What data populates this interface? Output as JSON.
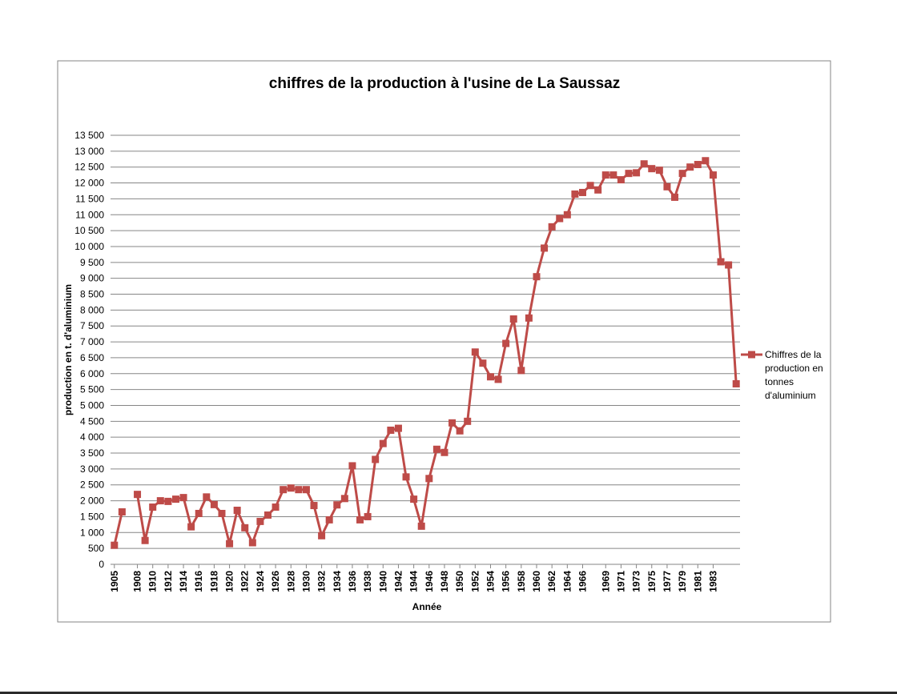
{
  "chart_data": {
    "type": "line",
    "title": "chiffres de la production à l'usine de La Saussaz",
    "xlabel": "Année",
    "ylabel": "production en t. d'aluminium",
    "ylim": [
      0,
      13500
    ],
    "ystep": 500,
    "grid": true,
    "legend_position": "right",
    "x_tick_labels": [
      "1905",
      "1908",
      "1910",
      "1912",
      "1914",
      "1916",
      "1918",
      "1920",
      "1922",
      "1924",
      "1926",
      "1928",
      "1930",
      "1932",
      "1934",
      "1936",
      "1938",
      "1940",
      "1942",
      "1944",
      "1946",
      "1948",
      "1950",
      "1952",
      "1954",
      "1956",
      "1958",
      "1960",
      "1962",
      "1964",
      "1966",
      "1969",
      "1971",
      "1973",
      "1975",
      "1977",
      "1979",
      "1981",
      "1983"
    ],
    "y_tick_labels": [
      "0",
      "500",
      "1 000",
      "1 500",
      "2 000",
      "2 500",
      "3 000",
      "3 500",
      "4 000",
      "4 500",
      "5 000",
      "5 500",
      "6 000",
      "6 500",
      "7 000",
      "7 500",
      "8 000",
      "8 500",
      "9 000",
      "9 500",
      "10 000",
      "10 500",
      "11 000",
      "11 500",
      "12 000",
      "12 500",
      "13 000",
      "13 500"
    ],
    "series": [
      {
        "name": "Chiffres de la production en tonnes d'aluminium",
        "color": "#be4b48",
        "values": [
          600,
          1650,
          null,
          2200,
          750,
          1800,
          2000,
          1980,
          2050,
          2100,
          1180,
          1600,
          2120,
          1880,
          1600,
          650,
          1700,
          1150,
          680,
          1350,
          1550,
          1800,
          2350,
          2400,
          2350,
          2350,
          1850,
          900,
          1400,
          1870,
          2070,
          3100,
          1400,
          1500,
          3300,
          3800,
          4220,
          4280,
          2750,
          2050,
          1200,
          2700,
          3620,
          3520,
          4450,
          4200,
          4500,
          6680,
          6330,
          5900,
          5820,
          6950,
          7720,
          6100,
          7750,
          9050,
          9950,
          10620,
          10880,
          11000,
          11650,
          11700,
          11920,
          11780,
          12250,
          12250,
          12100,
          12300,
          12320,
          12600,
          12450,
          12400,
          11880,
          11550,
          12300,
          12500,
          12580,
          12700,
          12250,
          9520,
          9420,
          5680
        ]
      }
    ]
  }
}
